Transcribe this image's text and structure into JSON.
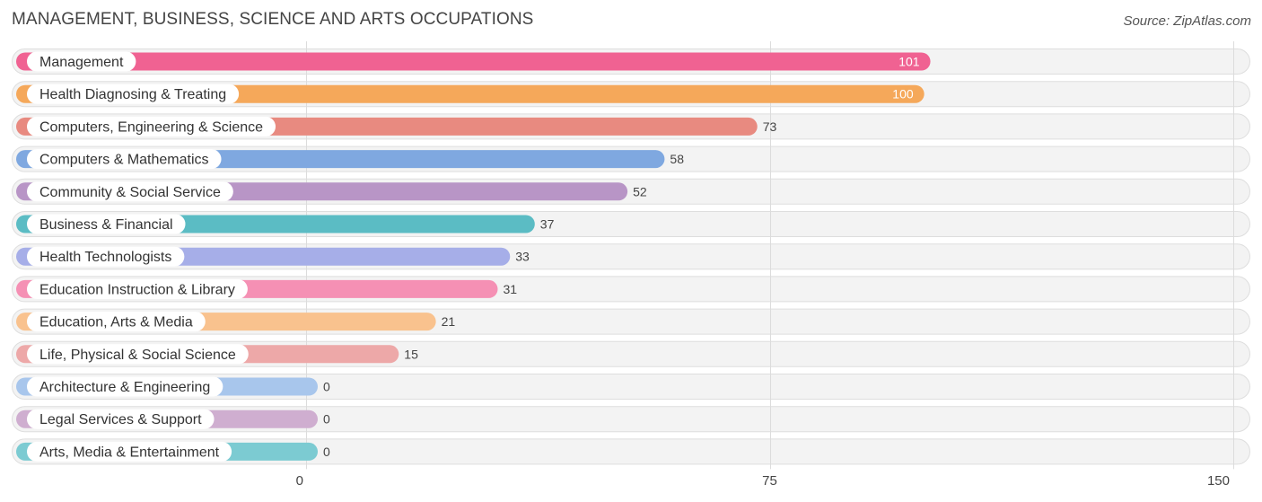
{
  "header": {
    "title": "MANAGEMENT, BUSINESS, SCIENCE AND ARTS OCCUPATIONS",
    "source": "Source: ZipAtlas.com"
  },
  "chart_data": {
    "type": "bar",
    "orientation": "horizontal",
    "title": "MANAGEMENT, BUSINESS, SCIENCE AND ARTS OCCUPATIONS",
    "categories": [
      "Management",
      "Health Diagnosing & Treating",
      "Computers, Engineering & Science",
      "Computers & Mathematics",
      "Community & Social Service",
      "Business & Financial",
      "Health Technologists",
      "Education Instruction & Library",
      "Education, Arts & Media",
      "Life, Physical & Social Science",
      "Architecture & Engineering",
      "Legal Services & Support",
      "Arts, Media & Entertainment"
    ],
    "values": [
      101,
      100,
      73,
      58,
      52,
      37,
      33,
      31,
      21,
      15,
      0,
      0,
      0
    ],
    "value_labels": [
      "101",
      "100",
      "73",
      "58",
      "52",
      "37",
      "33",
      "31",
      "21",
      "15",
      "0",
      "0",
      "0"
    ],
    "colors": [
      "#f06292",
      "#f5a85a",
      "#e88a80",
      "#7fa8e0",
      "#b895c6",
      "#5bbcc4",
      "#a6aee8",
      "#f590b4",
      "#f9c28e",
      "#eda8a8",
      "#a8c6ec",
      "#cfaed0",
      "#7ccbd2"
    ],
    "xlim": [
      0,
      150
    ],
    "ticks": [
      0,
      75,
      150
    ],
    "tick_labels": [
      "0",
      "75",
      "150"
    ],
    "grid": true,
    "xlabel": "",
    "ylabel": ""
  }
}
